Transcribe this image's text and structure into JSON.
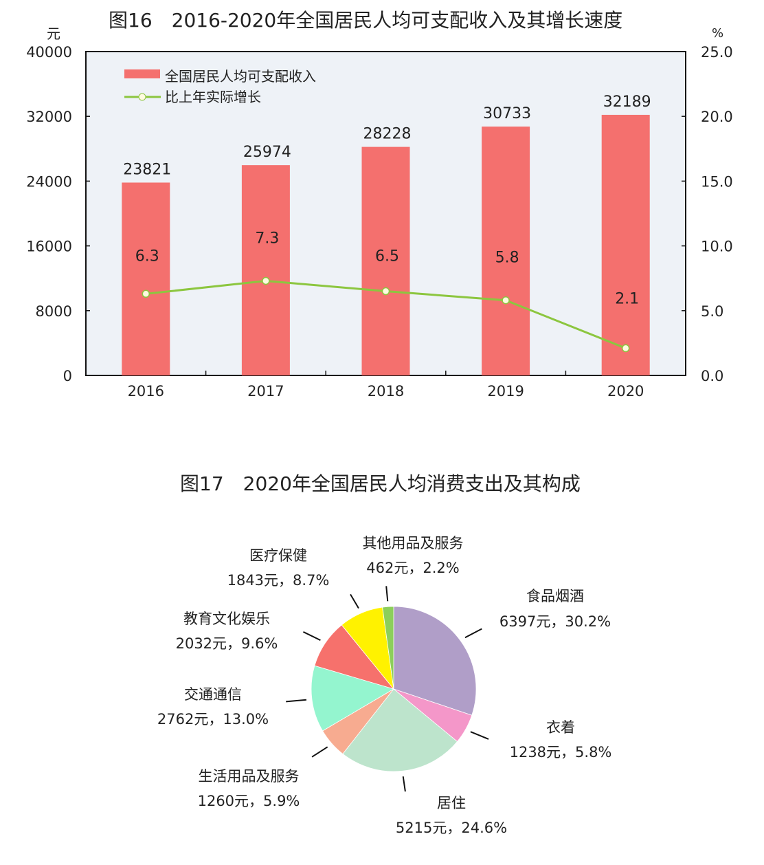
{
  "chart_data": [
    {
      "type": "bar+line",
      "title": "图16　2016-2020年全国居民人均可支配收入及其增长速度",
      "categories": [
        "2016",
        "2017",
        "2018",
        "2019",
        "2020"
      ],
      "left_axis": {
        "unit": "元",
        "ylim": [
          0,
          40000
        ],
        "ticks": [
          "0",
          "8000",
          "16000",
          "24000",
          "32000",
          "40000"
        ]
      },
      "right_axis": {
        "unit": "%",
        "ylim": [
          0,
          25
        ],
        "ticks": [
          "0.0",
          "5.0",
          "10.0",
          "15.0",
          "20.0",
          "25.0"
        ]
      },
      "series": [
        {
          "name": "全国居民人均可支配收入",
          "type": "bar",
          "axis": "left",
          "values": [
            23821,
            25974,
            28228,
            30733,
            32189
          ],
          "labels": [
            "23821",
            "25974",
            "28228",
            "30733",
            "32189"
          ],
          "color": "#f4706e"
        },
        {
          "name": "比上年实际增长",
          "type": "line",
          "axis": "right",
          "values": [
            6.3,
            7.3,
            6.5,
            5.8,
            2.1
          ],
          "labels": [
            "6.3",
            "7.3",
            "6.5",
            "5.8",
            "2.1"
          ],
          "color": "#8cc63f"
        }
      ],
      "legend": "top-left",
      "background": "#eef2f7"
    },
    {
      "type": "pie",
      "title": "图17　2020年全国居民人均消费支出及其构成",
      "slices": [
        {
          "name": "食品烟酒",
          "value": 6397,
          "percent": 30.2,
          "label": "6397元，30.2%",
          "color": "#b09ec8"
        },
        {
          "name": "衣着",
          "value": 1238,
          "percent": 5.8,
          "label": "1238元，5.8%",
          "color": "#f497c9"
        },
        {
          "name": "居住",
          "value": 5215,
          "percent": 24.6,
          "label": "5215元，24.6%",
          "color": "#bde4cc"
        },
        {
          "name": "生活用品及服务",
          "value": 1260,
          "percent": 5.9,
          "label": "1260元，5.9%",
          "color": "#f7ab90"
        },
        {
          "name": "交通通信",
          "value": 2762,
          "percent": 13.0,
          "label": "2762元，13.0%",
          "color": "#94f5cf"
        },
        {
          "name": "教育文化娱乐",
          "value": 2032,
          "percent": 9.6,
          "label": "2032元，9.6%",
          "color": "#f6716c"
        },
        {
          "name": "医疗保健",
          "value": 1843,
          "percent": 8.7,
          "label": "1843元，8.7%",
          "color": "#fff200"
        },
        {
          "name": "其他用品及服务",
          "value": 462,
          "percent": 2.2,
          "label": "462元，2.2%",
          "color": "#8ccf5a"
        }
      ]
    }
  ]
}
